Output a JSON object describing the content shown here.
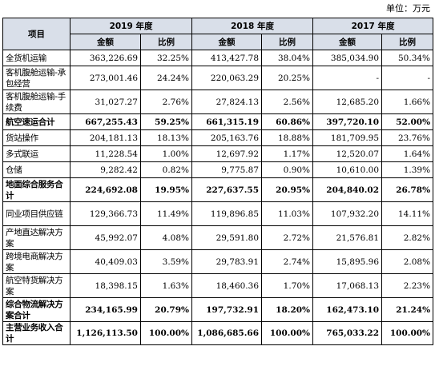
{
  "unit_label": "单位：万元",
  "header": {
    "item": "项目",
    "years": [
      "2019 年度",
      "2018 年度",
      "2017 年度"
    ],
    "amount": "金额",
    "ratio": "比例"
  },
  "rows": [
    {
      "label": "全货机运输",
      "bold": false,
      "tall": false,
      "cells": [
        "363,226.69",
        "32.25%",
        "413,427.78",
        "38.04%",
        "385,034.90",
        "50.34%"
      ]
    },
    {
      "label": "客机腹舱运输-承包经营",
      "bold": false,
      "tall": true,
      "cells": [
        "273,001.46",
        "24.24%",
        "220,063.29",
        "20.25%",
        "-",
        "-"
      ]
    },
    {
      "label": "客机腹舱运输-手续费",
      "bold": false,
      "tall": true,
      "cells": [
        "31,027.27",
        "2.76%",
        "27,824.13",
        "2.56%",
        "12,685.20",
        "1.66%"
      ]
    },
    {
      "label": "航空速运合计",
      "bold": true,
      "tall": false,
      "cells": [
        "667,255.43",
        "59.25%",
        "661,315.19",
        "60.86%",
        "397,720.10",
        "52.00%"
      ]
    },
    {
      "label": "货站操作",
      "bold": false,
      "tall": false,
      "cells": [
        "204,181.13",
        "18.13%",
        "205,163.76",
        "18.88%",
        "181,709.95",
        "23.76%"
      ]
    },
    {
      "label": "多式联运",
      "bold": false,
      "tall": false,
      "cells": [
        "11,228.54",
        "1.00%",
        "12,697.92",
        "1.17%",
        "12,520.07",
        "1.64%"
      ]
    },
    {
      "label": "仓储",
      "bold": false,
      "tall": false,
      "cells": [
        "9,282.42",
        "0.82%",
        "9,775.87",
        "0.90%",
        "10,610.00",
        "1.39%"
      ]
    },
    {
      "label": "地面综合服务合计",
      "bold": true,
      "tall": true,
      "cells": [
        "224,692.08",
        "19.95%",
        "227,637.55",
        "20.95%",
        "204,840.02",
        "26.78%"
      ]
    },
    {
      "label": "同业项目供应链",
      "bold": false,
      "tall": true,
      "cells": [
        "129,366.73",
        "11.49%",
        "119,896.85",
        "11.03%",
        "107,932.20",
        "14.11%"
      ]
    },
    {
      "label": "产地直达解决方案",
      "bold": false,
      "tall": true,
      "cells": [
        "45,992.07",
        "4.08%",
        "29,591.80",
        "2.72%",
        "21,576.81",
        "2.82%"
      ]
    },
    {
      "label": "跨境电商解决方案",
      "bold": false,
      "tall": true,
      "cells": [
        "40,409.03",
        "3.59%",
        "29,783.91",
        "2.74%",
        "15,895.96",
        "2.08%"
      ]
    },
    {
      "label": "航空特货解决方案",
      "bold": false,
      "tall": true,
      "cells": [
        "18,398.15",
        "1.63%",
        "18,460.36",
        "1.70%",
        "17,068.13",
        "2.23%"
      ]
    },
    {
      "label": "综合物流解决方案合计",
      "bold": true,
      "tall": true,
      "cells": [
        "234,165.99",
        "20.79%",
        "197,732.91",
        "18.20%",
        "162,473.10",
        "21.24%"
      ]
    },
    {
      "label": "主营业务收入合计",
      "bold": true,
      "tall": false,
      "cells": [
        "1,126,113.50",
        "100.00%",
        "1,086,685.66",
        "100.00%",
        "765,033.22",
        "100.00%"
      ]
    }
  ]
}
